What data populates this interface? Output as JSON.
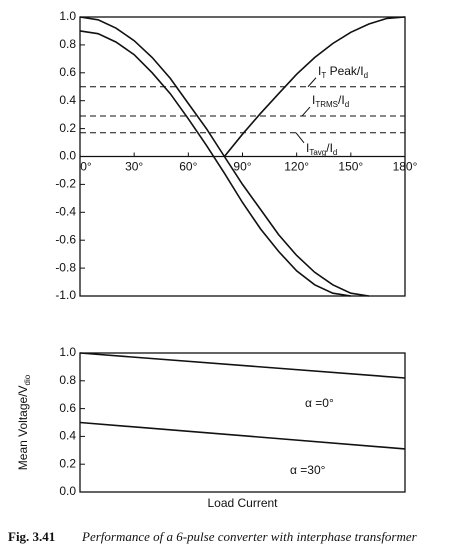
{
  "chart_data": [
    {
      "type": "line",
      "x": [
        0,
        10,
        20,
        30,
        40,
        50,
        60,
        70,
        80,
        90,
        100,
        110,
        120,
        130,
        140,
        150,
        160,
        170,
        180
      ],
      "xlim": [
        0,
        180
      ],
      "xticks": [
        {
          "value": 0,
          "label": "0°"
        },
        {
          "value": 30,
          "label": "30°"
        },
        {
          "value": 60,
          "label": "60°"
        },
        {
          "value": 90,
          "label": "90°"
        },
        {
          "value": 120,
          "label": "120°"
        },
        {
          "value": 150,
          "label": "150°"
        },
        {
          "value": 180,
          "label": "180°"
        }
      ],
      "ylim": [
        -1,
        1
      ],
      "yticks": [
        {
          "value": -1,
          "label": "-1.0"
        },
        {
          "value": -0.8,
          "label": "-0.8"
        },
        {
          "value": -0.6,
          "label": "-0.6"
        },
        {
          "value": -0.4,
          "label": "-0.4"
        },
        {
          "value": -0.2,
          "label": "-0.2"
        },
        {
          "value": 0,
          "label": "0.0"
        },
        {
          "value": 0.2,
          "label": "0.2"
        },
        {
          "value": 0.4,
          "label": "0.4"
        },
        {
          "value": 0.6,
          "label": "0.6"
        },
        {
          "value": 0.8,
          "label": "0.8"
        },
        {
          "value": 1,
          "label": "1.0"
        }
      ],
      "series": [
        {
          "color": "#111",
          "values": [
            1.0,
            0.98,
            0.92,
            0.83,
            0.71,
            0.56,
            0.38,
            0.2,
            0.0,
            -0.2,
            -0.38,
            -0.56,
            -0.71,
            -0.83,
            -0.92,
            -0.98,
            -1.0,
            null,
            null
          ]
        },
        {
          "color": "#111",
          "values": [
            0.9,
            0.88,
            0.82,
            0.73,
            0.6,
            0.45,
            0.27,
            0.08,
            -0.12,
            -0.33,
            -0.52,
            -0.68,
            -0.82,
            -0.92,
            -0.98,
            -1.0,
            null,
            null,
            null
          ]
        },
        {
          "color": "#111",
          "values": [
            null,
            null,
            null,
            null,
            null,
            null,
            null,
            null,
            0.0,
            0.16,
            0.31,
            0.45,
            0.59,
            0.71,
            0.81,
            0.89,
            0.95,
            0.99,
            1.0
          ]
        }
      ],
      "reference_lines": [
        {
          "value": 0.5,
          "label": [
            "I",
            "T",
            " Peak/I",
            "d"
          ]
        },
        {
          "value": 0.29,
          "label": [
            "I",
            "TRMS",
            "/I",
            "d"
          ]
        },
        {
          "value": 0.17,
          "label": [
            "I",
            "Tavg",
            "/I",
            "d"
          ]
        }
      ]
    },
    {
      "type": "line",
      "ylabel": [
        "Mean Voltage/V",
        "dio"
      ],
      "xlabel": "Load Current",
      "x": [
        0,
        1
      ],
      "xlim": [
        0,
        1
      ],
      "ylim": [
        0,
        1
      ],
      "yticks": [
        {
          "value": 0,
          "label": "0.0"
        },
        {
          "value": 0.2,
          "label": "0.2"
        },
        {
          "value": 0.4,
          "label": "0.4"
        },
        {
          "value": 0.6,
          "label": "0.6"
        },
        {
          "value": 0.8,
          "label": "0.8"
        },
        {
          "value": 1,
          "label": "1.0"
        }
      ],
      "series": [
        {
          "name": "α =0°",
          "color": "#111",
          "values": [
            1.0,
            0.82
          ]
        },
        {
          "name": "α =30°",
          "color": "#111",
          "values": [
            0.5,
            0.31
          ]
        }
      ]
    }
  ],
  "caption": {
    "number": "Fig. 3.41",
    "text": "Performance of a 6-pulse converter with interphase transformer"
  }
}
